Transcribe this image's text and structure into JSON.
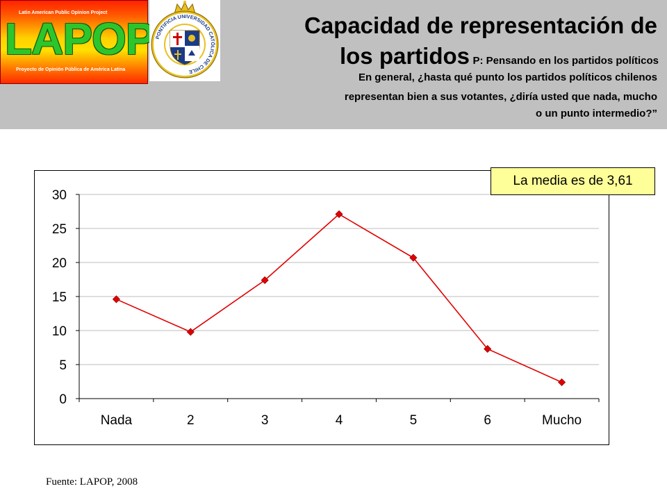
{
  "header": {
    "lapop_logo": {
      "top_text": "Latin American Public Opinion Project",
      "wordmark": "LAPOP",
      "bottom_text": "Proyecto de Opinión Pública de América Latina"
    },
    "uc_seal": {
      "ring_text": "PONTIFICIA UNIVERSIDAD CATÓLICA DE CHILE"
    },
    "title_line1": "Capacidad de representación de",
    "title_line2_big": "los partidos",
    "title_line2_small": "P: Pensando en los partidos políticos",
    "question_lines": [
      "En general, ¿hasta qué punto los partidos políticos chilenos",
      "representan bien a sus votantes, ¿diría usted que nada, mucho",
      "o un punto intermedio?”"
    ]
  },
  "mean_label": "La media es de 3,61",
  "source": "Fuente: LAPOP, 2008",
  "colors": {
    "header_bg": "#c0c0c0",
    "series": "#e00000",
    "mean_box_bg": "#ffff99"
  },
  "chart_data": {
    "type": "line",
    "categories": [
      "Nada",
      "2",
      "3",
      "4",
      "5",
      "6",
      "Mucho"
    ],
    "series": [
      {
        "values": [
          14.6,
          9.8,
          17.4,
          27.1,
          20.7,
          7.3,
          2.4
        ]
      }
    ],
    "y_ticks": [
      "0",
      "5",
      "10",
      "15",
      "20",
      "25",
      "30"
    ],
    "ylim": [
      0,
      30
    ],
    "grid": "horizontal",
    "legend": "none",
    "marker": "diamond"
  }
}
